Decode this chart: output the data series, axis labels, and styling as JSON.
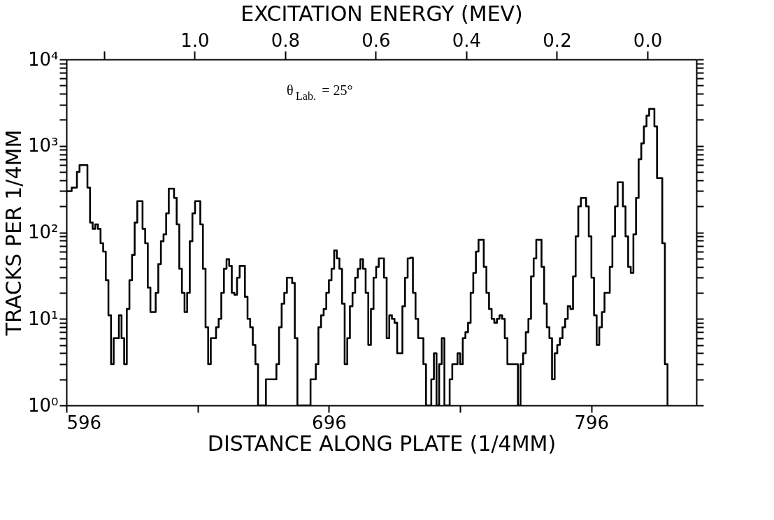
{
  "chart_data": {
    "type": "step",
    "xlabel": "DISTANCE ALONG PLATE (1/4MM)",
    "x2label": "EXCITATION ENERGY (MEV)",
    "ylabel": "TRACKS PER 1/4MM",
    "annotations": [
      "θ$_{Lab.}$= 25°"
    ],
    "x": [
      596,
      597,
      598,
      599,
      600,
      601,
      602,
      603,
      604,
      605,
      606,
      607,
      608,
      609,
      610,
      611,
      612,
      613,
      614,
      615,
      616,
      617,
      618,
      619,
      620,
      621,
      622,
      623,
      624,
      625,
      626,
      627,
      628,
      629,
      630,
      631,
      632,
      633,
      634,
      635,
      636,
      637,
      638,
      639,
      640,
      641,
      642,
      643,
      644,
      645,
      646,
      647,
      648,
      649,
      650,
      651,
      652,
      653,
      654,
      655,
      656,
      657,
      658,
      659,
      660,
      661,
      662,
      663,
      664,
      665,
      666,
      667,
      668,
      669,
      670,
      671,
      672,
      673,
      674,
      675,
      676,
      677,
      678,
      679,
      680,
      681,
      682,
      683,
      684,
      685,
      686,
      687,
      688,
      689,
      690,
      691,
      692,
      693,
      694,
      695,
      696,
      697,
      698,
      699,
      700,
      701,
      702,
      703,
      704,
      705,
      706,
      707,
      708,
      709,
      710,
      711,
      712,
      713,
      714,
      715,
      716,
      717,
      718,
      719,
      720,
      721,
      722,
      723,
      724,
      725,
      726,
      727,
      728,
      729,
      730,
      731,
      732,
      733,
      734,
      735,
      736,
      737,
      738,
      739,
      740,
      741,
      742,
      743,
      744,
      745,
      746,
      747,
      748,
      749,
      750,
      751,
      752,
      753,
      754,
      755,
      756,
      757,
      758,
      759,
      760,
      761,
      762,
      763,
      764,
      765,
      766,
      767,
      768,
      769,
      770,
      771,
      772,
      773,
      774,
      775,
      776,
      777,
      778,
      779,
      780,
      781,
      782,
      783,
      784,
      785,
      786,
      787,
      788,
      789,
      790,
      791,
      792,
      793,
      794,
      795,
      796,
      797,
      798,
      799,
      800,
      801,
      802,
      803,
      804,
      805,
      806,
      807,
      808,
      809,
      810,
      811,
      812,
      813,
      814,
      815,
      816,
      817,
      818,
      819,
      820,
      821,
      822,
      823,
      824,
      825
    ],
    "series": [
      {
        "color": "#000000",
        "values": [
          300,
          300,
          330,
          330,
          500,
          600,
          600,
          600,
          330,
          130,
          110,
          124,
          110,
          75,
          60,
          28,
          11,
          3,
          6,
          6,
          11,
          6,
          3,
          13,
          28,
          55,
          130,
          230,
          230,
          110,
          75,
          23,
          12,
          12,
          20,
          43,
          79,
          95,
          166,
          320,
          320,
          250,
          124,
          38,
          20,
          12,
          20,
          79,
          166,
          230,
          230,
          124,
          38,
          8,
          3,
          6,
          6,
          8,
          10,
          20,
          38,
          49,
          41,
          20,
          19,
          30,
          41,
          41,
          18,
          10,
          8,
          5,
          3,
          1,
          1,
          1,
          2,
          2,
          2,
          2,
          3,
          8,
          15,
          20,
          30,
          30,
          26,
          6,
          1,
          1,
          1,
          1,
          1,
          2,
          2,
          3,
          8,
          11,
          13,
          20,
          28,
          38,
          62,
          50,
          38,
          15,
          3,
          6,
          14,
          20,
          30,
          38,
          49,
          38,
          20,
          5,
          13,
          30,
          40,
          50,
          50,
          30,
          6,
          11,
          10,
          9,
          4,
          4,
          14,
          30,
          50,
          51,
          20,
          10,
          6,
          6,
          3,
          1,
          1,
          2,
          4,
          1,
          3,
          6,
          1,
          1,
          2,
          3,
          3,
          4,
          3,
          6,
          7,
          9,
          20,
          34,
          60,
          82,
          82,
          40,
          20,
          13,
          10,
          9,
          10,
          11,
          10,
          6,
          3,
          3,
          3,
          3,
          1,
          3,
          4,
          7,
          10,
          31,
          50,
          82,
          82,
          40,
          15,
          8,
          6,
          2,
          4,
          5,
          6,
          8,
          10,
          14,
          13,
          31,
          90,
          200,
          250,
          250,
          200,
          90,
          30,
          11,
          5,
          8,
          12,
          20,
          20,
          40,
          90,
          200,
          380,
          380,
          200,
          90,
          40,
          34,
          95,
          250,
          700,
          1070,
          1680,
          2240,
          2680,
          2680,
          1680,
          425,
          425,
          75,
          3,
          1
        ]
      }
    ],
    "xlim": [
      596,
      836
    ],
    "xticks": [
      596,
      {
        "value": 646,
        "label": null
      },
      696,
      {
        "value": 746,
        "label": null
      },
      796
    ],
    "x2lim": [
      1.283,
      -0.108
    ],
    "x2ticks": [
      {
        "value": 1.2,
        "label": null
      },
      {
        "value": 1.0,
        "label": "1.0"
      },
      {
        "value": 0.8,
        "label": "0.8"
      },
      {
        "value": 0.6,
        "label": "0.6"
      },
      {
        "value": 0.4,
        "label": "0.4"
      },
      {
        "value": 0.2,
        "label": "0.2"
      },
      {
        "value": 0.0,
        "label": "0.0"
      }
    ],
    "log": "y",
    "ylim": [
      1,
      10000
    ],
    "yticks": [
      {
        "value": 1,
        "label": "10⁰"
      },
      {
        "value": 2,
        "label": null
      },
      {
        "value": 3,
        "label": null
      },
      {
        "value": 4,
        "label": null
      },
      {
        "value": 5,
        "label": null
      },
      {
        "value": 6,
        "label": null
      },
      {
        "value": 7,
        "label": null
      },
      {
        "value": 8,
        "label": null
      },
      {
        "value": 9,
        "label": null
      },
      {
        "value": 10,
        "label": "10¹"
      },
      {
        "value": 20,
        "label": null
      },
      {
        "value": 30,
        "label": null
      },
      {
        "value": 40,
        "label": null
      },
      {
        "value": 50,
        "label": null
      },
      {
        "value": 60,
        "label": null
      },
      {
        "value": 70,
        "label": null
      },
      {
        "value": 80,
        "label": null
      },
      {
        "value": 90,
        "label": null
      },
      {
        "value": 100,
        "label": "10²"
      },
      {
        "value": 200,
        "label": null
      },
      {
        "value": 300,
        "label": null
      },
      {
        "value": 400,
        "label": null
      },
      {
        "value": 500,
        "label": null
      },
      {
        "value": 600,
        "label": null
      },
      {
        "value": 700,
        "label": null
      },
      {
        "value": 800,
        "label": null
      },
      {
        "value": 900,
        "label": null
      },
      {
        "value": 1000,
        "label": "10³"
      },
      {
        "value": 2000,
        "label": null
      },
      {
        "value": 3000,
        "label": null
      },
      {
        "value": 4000,
        "label": null
      },
      {
        "value": 5000,
        "label": null
      },
      {
        "value": 6000,
        "label": null
      },
      {
        "value": 7000,
        "label": null
      },
      {
        "value": 8000,
        "label": null
      },
      {
        "value": 9000,
        "label": null
      },
      {
        "value": 10000,
        "label": "10⁴"
      }
    ],
    "grid": false,
    "line_style": "solid"
  }
}
